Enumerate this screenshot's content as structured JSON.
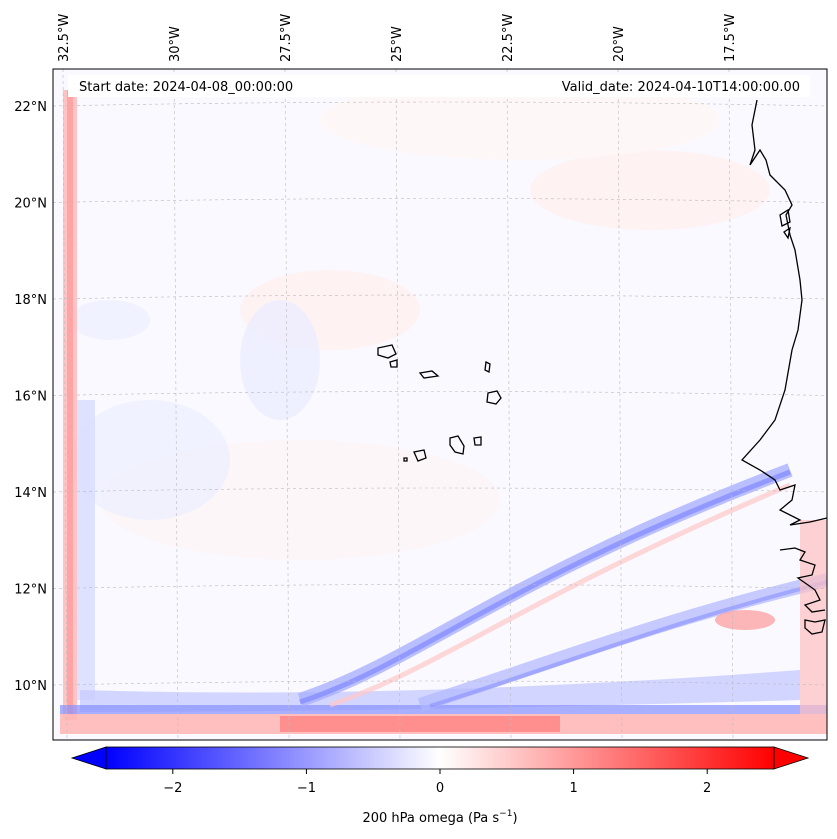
{
  "header": {
    "start_date": "Start date: 2024-04-08_00:00:00",
    "valid_date": "Valid_date: 2024-04-10T14:00:00.00"
  },
  "map": {
    "lon_ticks": [
      "32.5°W",
      "30°W",
      "27.5°W",
      "25°W",
      "22.5°W",
      "20°W",
      "17.5°W"
    ],
    "lat_ticks": [
      "22°N",
      "20°N",
      "18°N",
      "16°N",
      "14°N",
      "12°N",
      "10°N"
    ],
    "lon_values": [
      -32.5,
      -30,
      -27.5,
      -25,
      -22.5,
      -20,
      -17.5
    ],
    "lat_values": [
      22,
      20,
      18,
      16,
      14,
      12,
      10
    ]
  },
  "colorbar": {
    "ticks": [
      "−2",
      "−1",
      "0",
      "1",
      "2"
    ],
    "tick_values": [
      -2,
      -1,
      0,
      1,
      2
    ],
    "range": [
      -2.5,
      2.5
    ],
    "label_main": "200 hPa omega (Pa s",
    "label_exp": "−1",
    "label_close": ")",
    "colors": {
      "low": "#0000ff",
      "mid": "#ffffff",
      "high": "#ff0000"
    }
  }
}
